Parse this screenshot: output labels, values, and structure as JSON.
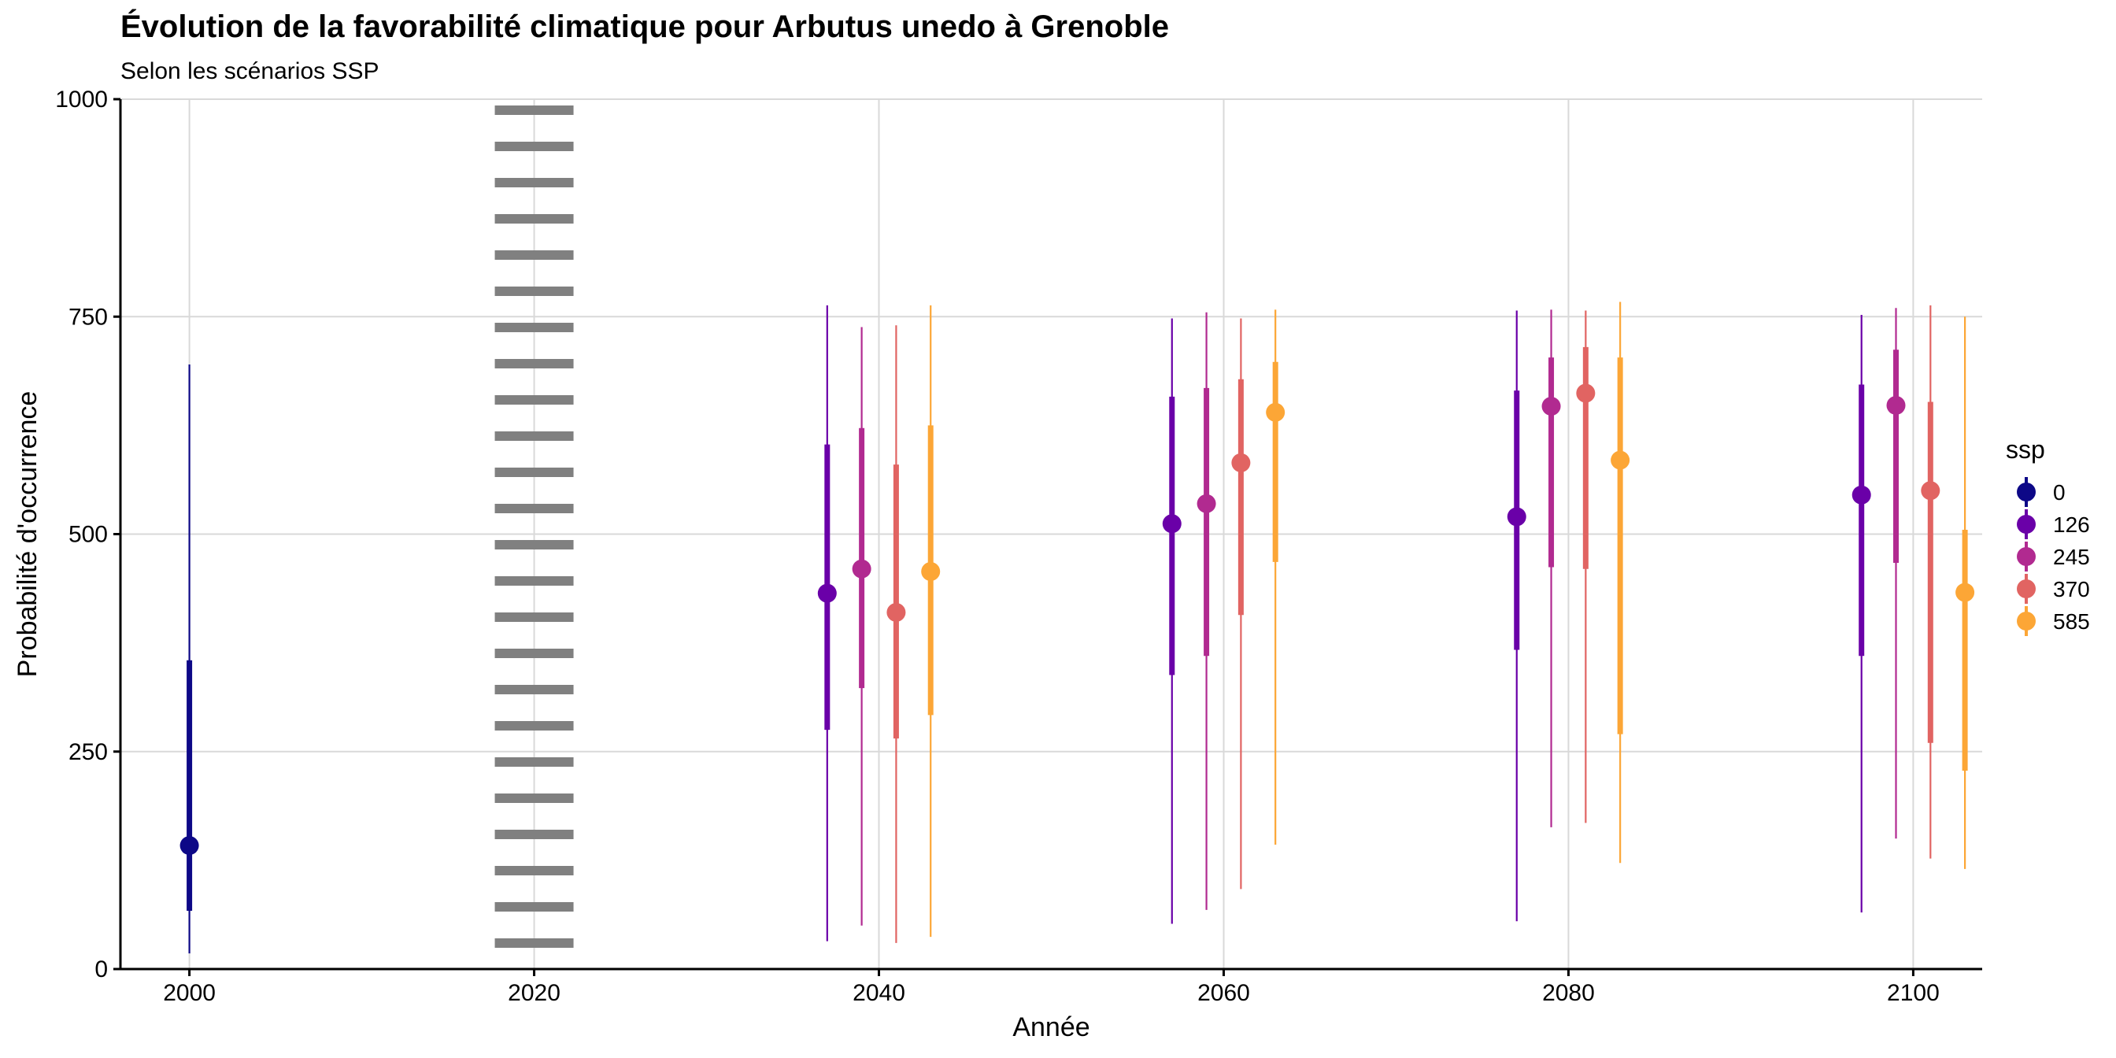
{
  "chart_data": {
    "type": "scatter",
    "title": "Évolution de la favorabilité climatique pour Arbutus unedo à Grenoble",
    "subtitle": "Selon les scénarios SSP",
    "xlabel": "Année",
    "ylabel": "Probabilité d'occurrence",
    "xlim": [
      1996,
      2104
    ],
    "ylim": [
      0,
      1000
    ],
    "xticks": [
      2000,
      2020,
      2040,
      2060,
      2080,
      2100
    ],
    "yticks": [
      0,
      250,
      500,
      750,
      1000
    ],
    "reference_line_x": 2020,
    "legend_title": "ssp",
    "legend_position": "right",
    "grid": true,
    "series": [
      {
        "name": "0",
        "color": "#0d0887",
        "points": [
          {
            "x": 2000,
            "y": 142,
            "lo_inner": 67,
            "hi_inner": 355,
            "lo_outer": 18,
            "hi_outer": 695
          }
        ]
      },
      {
        "name": "126",
        "color": "#6a00a8",
        "points": [
          {
            "x": 2037,
            "y": 432,
            "lo_inner": 275,
            "hi_inner": 603,
            "lo_outer": 32,
            "hi_outer": 763
          },
          {
            "x": 2057,
            "y": 512,
            "lo_inner": 338,
            "hi_inner": 658,
            "lo_outer": 52,
            "hi_outer": 748
          },
          {
            "x": 2077,
            "y": 520,
            "lo_inner": 367,
            "hi_inner": 665,
            "lo_outer": 55,
            "hi_outer": 757
          },
          {
            "x": 2097,
            "y": 545,
            "lo_inner": 360,
            "hi_inner": 672,
            "lo_outer": 65,
            "hi_outer": 752
          }
        ]
      },
      {
        "name": "245",
        "color": "#b12a90",
        "points": [
          {
            "x": 2039,
            "y": 460,
            "lo_inner": 323,
            "hi_inner": 622,
            "lo_outer": 50,
            "hi_outer": 738
          },
          {
            "x": 2059,
            "y": 535,
            "lo_inner": 360,
            "hi_inner": 668,
            "lo_outer": 68,
            "hi_outer": 755
          },
          {
            "x": 2079,
            "y": 647,
            "lo_inner": 462,
            "hi_inner": 703,
            "lo_outer": 163,
            "hi_outer": 758
          },
          {
            "x": 2099,
            "y": 648,
            "lo_inner": 467,
            "hi_inner": 712,
            "lo_outer": 150,
            "hi_outer": 760
          }
        ]
      },
      {
        "name": "370",
        "color": "#e16462",
        "points": [
          {
            "x": 2041,
            "y": 410,
            "lo_inner": 265,
            "hi_inner": 580,
            "lo_outer": 30,
            "hi_outer": 740
          },
          {
            "x": 2061,
            "y": 582,
            "lo_inner": 407,
            "hi_inner": 678,
            "lo_outer": 92,
            "hi_outer": 748
          },
          {
            "x": 2081,
            "y": 662,
            "lo_inner": 460,
            "hi_inner": 715,
            "lo_outer": 168,
            "hi_outer": 757
          },
          {
            "x": 2101,
            "y": 550,
            "lo_inner": 260,
            "hi_inner": 652,
            "lo_outer": 127,
            "hi_outer": 763
          }
        ]
      },
      {
        "name": "585",
        "color": "#fca636",
        "points": [
          {
            "x": 2043,
            "y": 457,
            "lo_inner": 292,
            "hi_inner": 625,
            "lo_outer": 37,
            "hi_outer": 763
          },
          {
            "x": 2063,
            "y": 640,
            "lo_inner": 468,
            "hi_inner": 698,
            "lo_outer": 143,
            "hi_outer": 758
          },
          {
            "x": 2083,
            "y": 585,
            "lo_inner": 270,
            "hi_inner": 703,
            "lo_outer": 122,
            "hi_outer": 767
          },
          {
            "x": 2103,
            "y": 433,
            "lo_inner": 228,
            "hi_inner": 505,
            "lo_outer": 115,
            "hi_outer": 750
          }
        ]
      }
    ]
  }
}
